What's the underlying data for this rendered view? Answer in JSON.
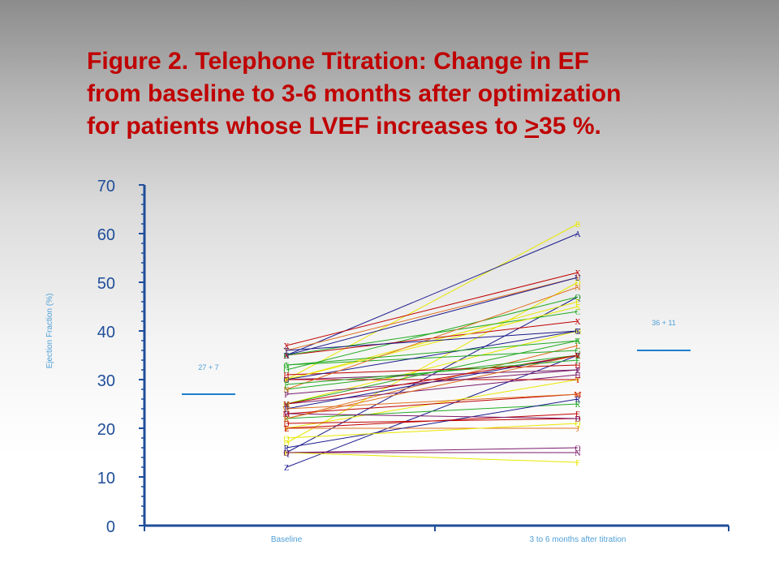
{
  "title": {
    "line1": "Figure 2. Telephone Titration: Change in EF",
    "line2": "from baseline to 3-6 months after optimization",
    "line3_before": "for patients whose LVEF increases to ",
    "line3_ge": ">",
    "line3_after": "35 %."
  },
  "chart_data": {
    "type": "line",
    "ylabel": "Ejection Fraction (%)",
    "categories": [
      "Baseline",
      "3 to 6 months after titration"
    ],
    "ylim": [
      0,
      70
    ],
    "yticks": [
      "0",
      "10",
      "20",
      "30",
      "40",
      "50",
      "60",
      "70"
    ],
    "grid": false,
    "legend": "none",
    "mean_baseline": {
      "label": "27 + 7",
      "value": 27
    },
    "mean_followup": {
      "label": "36 + 11",
      "value": 36
    },
    "series": [
      {
        "marker": "Z",
        "color": "#1a1a8c",
        "values": [
          12,
          35
        ]
      },
      {
        "marker": "B",
        "color": "#e8e800",
        "values": [
          30,
          62
        ]
      },
      {
        "marker": "A",
        "color": "#1a1a8c",
        "values": [
          35,
          60
        ]
      },
      {
        "marker": "X",
        "color": "#c00000",
        "values": [
          37,
          52
        ]
      },
      {
        "marker": "Y",
        "color": "#e07020",
        "values": [
          36,
          51
        ]
      },
      {
        "marker": "D",
        "color": "#e8e800",
        "values": [
          17,
          50
        ]
      },
      {
        "marker": "Q",
        "color": "#1a1a8c",
        "values": [
          15,
          47
        ]
      },
      {
        "marker": "O",
        "color": "#22aa22",
        "values": [
          32,
          47
        ]
      },
      {
        "marker": "E",
        "color": "#e8e800",
        "values": [
          30,
          46
        ]
      },
      {
        "marker": "X",
        "color": "#c00000",
        "values": [
          35,
          42
        ]
      },
      {
        "marker": "M",
        "color": "#e8e800",
        "values": [
          25,
          40
        ]
      },
      {
        "marker": "L",
        "color": "#e07020",
        "values": [
          22,
          37
        ]
      },
      {
        "marker": "S",
        "color": "#22aa22",
        "values": [
          28,
          35
        ]
      },
      {
        "marker": "I",
        "color": "#7a1a6a",
        "values": [
          30,
          32
        ]
      },
      {
        "marker": "V",
        "color": "#e8e800",
        "values": [
          20,
          30
        ]
      },
      {
        "marker": "M",
        "color": "#c00000",
        "values": [
          23,
          27
        ]
      },
      {
        "marker": "R",
        "color": "#22aa22",
        "values": [
          22,
          25
        ]
      },
      {
        "marker": "D",
        "color": "#c00000",
        "values": [
          21,
          22
        ]
      },
      {
        "marker": "J",
        "color": "#e07020",
        "values": [
          20,
          20
        ]
      },
      {
        "marker": "N",
        "color": "#7a1a6a",
        "values": [
          15,
          15
        ]
      },
      {
        "marker": "F",
        "color": "#e8e800",
        "values": [
          15,
          13
        ]
      },
      {
        "marker": "U",
        "color": "#1a1a8c",
        "values": [
          35,
          51
        ]
      },
      {
        "marker": "C",
        "color": "#22aa22",
        "values": [
          35,
          44
        ]
      },
      {
        "marker": "K",
        "color": "#22aa22",
        "values": [
          25,
          38
        ]
      },
      {
        "marker": "G",
        "color": "#22aa22",
        "values": [
          33,
          36
        ]
      },
      {
        "marker": "H",
        "color": "#7a1a6a",
        "values": [
          25,
          31
        ]
      },
      {
        "marker": "P",
        "color": "#1a1a8c",
        "values": [
          24,
          35
        ]
      },
      {
        "marker": "T",
        "color": "#c00000",
        "values": [
          30,
          30
        ]
      },
      {
        "marker": "W",
        "color": "#e07020",
        "values": [
          24,
          27
        ]
      },
      {
        "marker": "R",
        "color": "#1a1a8c",
        "values": [
          16,
          26
        ]
      },
      {
        "marker": "E",
        "color": "#c00000",
        "values": [
          20,
          23
        ]
      },
      {
        "marker": "B",
        "color": "#7a1a6a",
        "values": [
          23,
          22
        ]
      },
      {
        "marker": "O",
        "color": "#7a1a6a",
        "values": [
          15,
          16
        ]
      },
      {
        "marker": "H",
        "color": "#c00000",
        "values": [
          31,
          33
        ]
      },
      {
        "marker": "K",
        "color": "#e07020",
        "values": [
          22,
          35
        ]
      },
      {
        "marker": "S",
        "color": "#e8e800",
        "values": [
          30,
          45
        ]
      },
      {
        "marker": "G",
        "color": "#1a1a8c",
        "values": [
          30,
          40
        ]
      },
      {
        "marker": "N",
        "color": "#e07020",
        "values": [
          28,
          49
        ]
      },
      {
        "marker": "A",
        "color": "#22aa22",
        "values": [
          33,
          38
        ]
      },
      {
        "marker": "P",
        "color": "#7a1a6a",
        "values": [
          27,
          32
        ]
      },
      {
        "marker": "T",
        "color": "#1a1a8c",
        "values": [
          36,
          40
        ]
      },
      {
        "marker": "Q",
        "color": "#e8e800",
        "values": [
          18,
          21
        ]
      },
      {
        "marker": "V",
        "color": "#c00000",
        "values": [
          25,
          35
        ]
      },
      {
        "marker": "F",
        "color": "#22aa22",
        "values": [
          29,
          34
        ]
      }
    ]
  }
}
